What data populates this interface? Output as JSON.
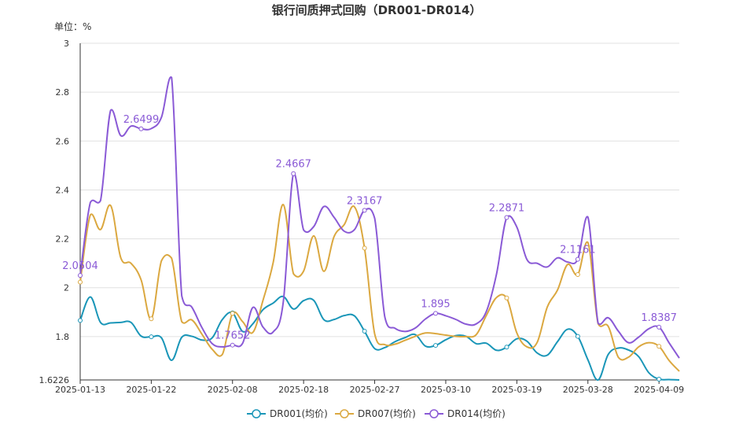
{
  "chart_data": {
    "type": "line",
    "title": "银行间质押式回购（DR001-DR014）",
    "unit_label": "单位：%",
    "ylim": [
      1.6226,
      3
    ],
    "y_ticks": [
      "1.6226",
      "1.8",
      "2",
      "2.2",
      "2.4",
      "2.6",
      "2.8",
      "3"
    ],
    "x_ticks": [
      "2025-01-13",
      "2025-01-22",
      "2025-02-08",
      "2025-02-18",
      "2025-02-27",
      "2025-03-10",
      "2025-03-19",
      "2025-03-28",
      "2025-04-09"
    ],
    "grid": true,
    "legend_position": "bottom",
    "colors": {
      "DR001(均价)": "#1a96b8",
      "DR007(均价)": "#dba840",
      "DR014(均价)": "#8a5ad6"
    },
    "x": [
      "2025-01-13",
      "2025-01-14",
      "2025-01-15",
      "2025-01-16",
      "2025-01-17",
      "2025-01-20",
      "2025-01-21",
      "2025-01-22",
      "2025-01-23",
      "2025-01-24",
      "2025-01-26",
      "2025-01-27",
      "2025-02-05",
      "2025-02-06",
      "2025-02-07",
      "2025-02-08",
      "2025-02-10",
      "2025-02-11",
      "2025-02-12",
      "2025-02-13",
      "2025-02-14",
      "2025-02-17",
      "2025-02-18",
      "2025-02-19",
      "2025-02-20",
      "2025-02-21",
      "2025-02-24",
      "2025-02-25",
      "2025-02-26",
      "2025-02-27",
      "2025-02-28",
      "2025-03-03",
      "2025-03-04",
      "2025-03-05",
      "2025-03-06",
      "2025-03-07",
      "2025-03-10",
      "2025-03-11",
      "2025-03-12",
      "2025-03-13",
      "2025-03-14",
      "2025-03-17",
      "2025-03-18",
      "2025-03-19",
      "2025-03-20",
      "2025-03-21",
      "2025-03-24",
      "2025-03-25",
      "2025-03-26",
      "2025-03-27",
      "2025-03-28",
      "2025-03-31",
      "2025-04-01",
      "2025-04-02",
      "2025-04-03",
      "2025-04-07",
      "2025-04-08",
      "2025-04-09",
      "2025-04-10",
      "2025-04-11"
    ],
    "series": [
      {
        "name": "DR001(均价)",
        "values": [
          1.866,
          1.962,
          1.858,
          1.856,
          1.858,
          1.858,
          1.802,
          1.799,
          1.795,
          1.703,
          1.797,
          1.801,
          1.786,
          1.795,
          1.87,
          1.897,
          1.821,
          1.852,
          1.91,
          1.937,
          1.964,
          1.913,
          1.947,
          1.948,
          1.869,
          1.87,
          1.886,
          1.885,
          1.822,
          1.751,
          1.755,
          1.779,
          1.796,
          1.808,
          1.761,
          1.764,
          1.787,
          1.804,
          1.801,
          1.771,
          1.773,
          1.744,
          1.757,
          1.791,
          1.781,
          1.733,
          1.724,
          1.779,
          1.83,
          1.801,
          1.705,
          1.607,
          1.727,
          1.753,
          1.745,
          1.718,
          1.652,
          1.626,
          1.624,
          1.622
        ],
        "labeled": []
      },
      {
        "name": "DR007(均价)",
        "values": [
          2.023,
          2.298,
          2.238,
          2.336,
          2.122,
          2.1,
          2.032,
          1.873,
          2.11,
          2.121,
          1.861,
          1.868,
          1.809,
          1.748,
          1.727,
          1.895,
          1.861,
          1.817,
          1.948,
          2.102,
          2.34,
          2.057,
          2.068,
          2.212,
          2.067,
          2.209,
          2.258,
          2.331,
          2.162,
          1.811,
          1.767,
          1.769,
          1.785,
          1.801,
          1.815,
          1.812,
          1.806,
          1.801,
          1.8,
          1.808,
          1.887,
          1.96,
          1.958,
          1.815,
          1.758,
          1.776,
          1.921,
          1.99,
          2.095,
          2.054,
          2.185,
          1.853,
          1.842,
          1.715,
          1.716,
          1.758,
          1.775,
          1.76,
          1.702,
          1.658
        ],
        "labeled": []
      },
      {
        "name": "DR014(均价)",
        "values": [
          2.0504,
          2.349,
          2.356,
          2.726,
          2.622,
          2.661,
          2.6499,
          2.651,
          2.697,
          2.86,
          1.967,
          1.92,
          1.836,
          1.771,
          1.758,
          1.7652,
          1.773,
          1.919,
          1.839,
          1.819,
          1.942,
          2.4667,
          2.236,
          2.25,
          2.332,
          2.288,
          2.231,
          2.237,
          2.3167,
          2.284,
          1.88,
          1.834,
          1.821,
          1.835,
          1.872,
          1.895,
          1.885,
          1.87,
          1.851,
          1.852,
          1.903,
          2.056,
          2.2871,
          2.248,
          2.115,
          2.1,
          2.085,
          2.122,
          2.105,
          2.1161,
          2.289,
          1.855,
          1.877,
          1.822,
          1.775,
          1.798,
          1.832,
          1.8387,
          1.774,
          1.712
        ],
        "labeled": [
          0,
          6,
          15,
          21,
          28,
          35,
          42,
          49,
          57
        ]
      }
    ],
    "data_labels": [
      "2.0504",
      "2.6499",
      "1.7652",
      "2.4667",
      "2.3167",
      "1.895",
      "2.2871",
      "2.1161",
      "1.8387"
    ]
  }
}
